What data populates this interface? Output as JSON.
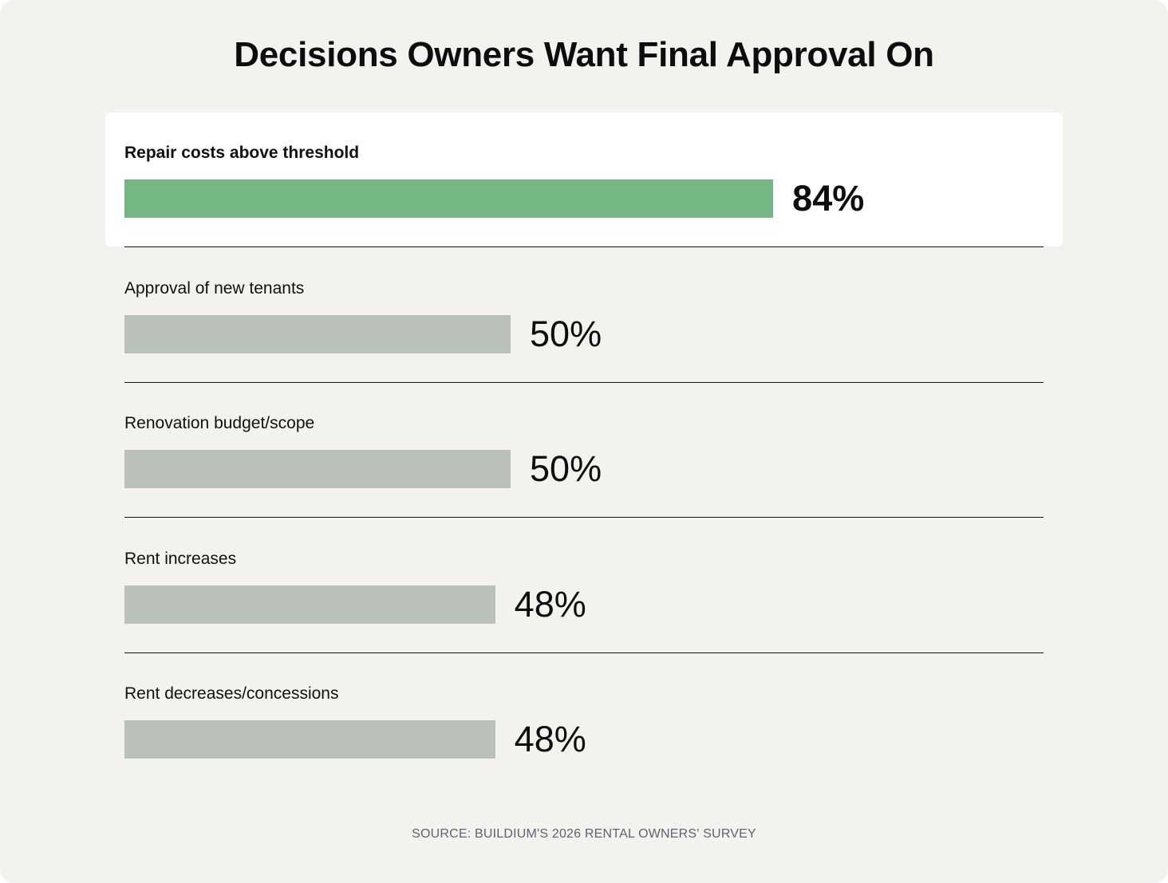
{
  "chart_data": {
    "type": "bar",
    "orientation": "horizontal",
    "title": "Decisions Owners Want Final Approval On",
    "unit": "%",
    "xlim": [
      0,
      100
    ],
    "categories": [
      "Repair costs above threshold",
      "Approval of new tenants",
      "Renovation budget/scope",
      "Rent increases",
      "Rent decreases/concessions"
    ],
    "values": [
      84,
      50,
      50,
      48,
      48
    ],
    "value_labels": [
      "84%",
      "50%",
      "50%",
      "48%",
      "48%"
    ],
    "highlighted_index": 0,
    "source": "SOURCE: BUILDIUM'S 2026 RENTAL OWNERS' SURVEY"
  },
  "colors": {
    "background": "#f4f2ee",
    "highlight_bar": "#74b784",
    "default_bar": "#bac1ba",
    "highlight_panel": "#ffffff",
    "text": "#0d0d0d",
    "source_text": "#5b6472"
  }
}
